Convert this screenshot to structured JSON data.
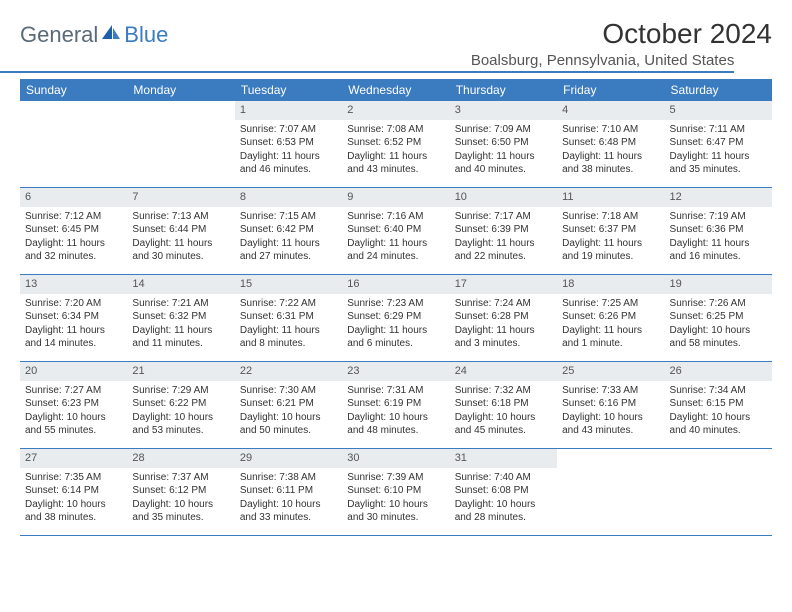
{
  "logo": {
    "general": "General",
    "blue": "Blue"
  },
  "header": {
    "month_year": "October 2024",
    "location": "Boalsburg, Pennsylvania, United States"
  },
  "colors": {
    "brand_blue": "#3b7bbf",
    "day_num_bg": "#e8ecef",
    "text": "#333333",
    "logo_gray": "#5a6a78"
  },
  "day_headers": [
    "Sunday",
    "Monday",
    "Tuesday",
    "Wednesday",
    "Thursday",
    "Friday",
    "Saturday"
  ],
  "weeks": [
    [
      {
        "empty": true
      },
      {
        "empty": true
      },
      {
        "day": "1",
        "sunrise": "Sunrise: 7:07 AM",
        "sunset": "Sunset: 6:53 PM",
        "daylight": "Daylight: 11 hours and 46 minutes."
      },
      {
        "day": "2",
        "sunrise": "Sunrise: 7:08 AM",
        "sunset": "Sunset: 6:52 PM",
        "daylight": "Daylight: 11 hours and 43 minutes."
      },
      {
        "day": "3",
        "sunrise": "Sunrise: 7:09 AM",
        "sunset": "Sunset: 6:50 PM",
        "daylight": "Daylight: 11 hours and 40 minutes."
      },
      {
        "day": "4",
        "sunrise": "Sunrise: 7:10 AM",
        "sunset": "Sunset: 6:48 PM",
        "daylight": "Daylight: 11 hours and 38 minutes."
      },
      {
        "day": "5",
        "sunrise": "Sunrise: 7:11 AM",
        "sunset": "Sunset: 6:47 PM",
        "daylight": "Daylight: 11 hours and 35 minutes."
      }
    ],
    [
      {
        "day": "6",
        "sunrise": "Sunrise: 7:12 AM",
        "sunset": "Sunset: 6:45 PM",
        "daylight": "Daylight: 11 hours and 32 minutes."
      },
      {
        "day": "7",
        "sunrise": "Sunrise: 7:13 AM",
        "sunset": "Sunset: 6:44 PM",
        "daylight": "Daylight: 11 hours and 30 minutes."
      },
      {
        "day": "8",
        "sunrise": "Sunrise: 7:15 AM",
        "sunset": "Sunset: 6:42 PM",
        "daylight": "Daylight: 11 hours and 27 minutes."
      },
      {
        "day": "9",
        "sunrise": "Sunrise: 7:16 AM",
        "sunset": "Sunset: 6:40 PM",
        "daylight": "Daylight: 11 hours and 24 minutes."
      },
      {
        "day": "10",
        "sunrise": "Sunrise: 7:17 AM",
        "sunset": "Sunset: 6:39 PM",
        "daylight": "Daylight: 11 hours and 22 minutes."
      },
      {
        "day": "11",
        "sunrise": "Sunrise: 7:18 AM",
        "sunset": "Sunset: 6:37 PM",
        "daylight": "Daylight: 11 hours and 19 minutes."
      },
      {
        "day": "12",
        "sunrise": "Sunrise: 7:19 AM",
        "sunset": "Sunset: 6:36 PM",
        "daylight": "Daylight: 11 hours and 16 minutes."
      }
    ],
    [
      {
        "day": "13",
        "sunrise": "Sunrise: 7:20 AM",
        "sunset": "Sunset: 6:34 PM",
        "daylight": "Daylight: 11 hours and 14 minutes."
      },
      {
        "day": "14",
        "sunrise": "Sunrise: 7:21 AM",
        "sunset": "Sunset: 6:32 PM",
        "daylight": "Daylight: 11 hours and 11 minutes."
      },
      {
        "day": "15",
        "sunrise": "Sunrise: 7:22 AM",
        "sunset": "Sunset: 6:31 PM",
        "daylight": "Daylight: 11 hours and 8 minutes."
      },
      {
        "day": "16",
        "sunrise": "Sunrise: 7:23 AM",
        "sunset": "Sunset: 6:29 PM",
        "daylight": "Daylight: 11 hours and 6 minutes."
      },
      {
        "day": "17",
        "sunrise": "Sunrise: 7:24 AM",
        "sunset": "Sunset: 6:28 PM",
        "daylight": "Daylight: 11 hours and 3 minutes."
      },
      {
        "day": "18",
        "sunrise": "Sunrise: 7:25 AM",
        "sunset": "Sunset: 6:26 PM",
        "daylight": "Daylight: 11 hours and 1 minute."
      },
      {
        "day": "19",
        "sunrise": "Sunrise: 7:26 AM",
        "sunset": "Sunset: 6:25 PM",
        "daylight": "Daylight: 10 hours and 58 minutes."
      }
    ],
    [
      {
        "day": "20",
        "sunrise": "Sunrise: 7:27 AM",
        "sunset": "Sunset: 6:23 PM",
        "daylight": "Daylight: 10 hours and 55 minutes."
      },
      {
        "day": "21",
        "sunrise": "Sunrise: 7:29 AM",
        "sunset": "Sunset: 6:22 PM",
        "daylight": "Daylight: 10 hours and 53 minutes."
      },
      {
        "day": "22",
        "sunrise": "Sunrise: 7:30 AM",
        "sunset": "Sunset: 6:21 PM",
        "daylight": "Daylight: 10 hours and 50 minutes."
      },
      {
        "day": "23",
        "sunrise": "Sunrise: 7:31 AM",
        "sunset": "Sunset: 6:19 PM",
        "daylight": "Daylight: 10 hours and 48 minutes."
      },
      {
        "day": "24",
        "sunrise": "Sunrise: 7:32 AM",
        "sunset": "Sunset: 6:18 PM",
        "daylight": "Daylight: 10 hours and 45 minutes."
      },
      {
        "day": "25",
        "sunrise": "Sunrise: 7:33 AM",
        "sunset": "Sunset: 6:16 PM",
        "daylight": "Daylight: 10 hours and 43 minutes."
      },
      {
        "day": "26",
        "sunrise": "Sunrise: 7:34 AM",
        "sunset": "Sunset: 6:15 PM",
        "daylight": "Daylight: 10 hours and 40 minutes."
      }
    ],
    [
      {
        "day": "27",
        "sunrise": "Sunrise: 7:35 AM",
        "sunset": "Sunset: 6:14 PM",
        "daylight": "Daylight: 10 hours and 38 minutes."
      },
      {
        "day": "28",
        "sunrise": "Sunrise: 7:37 AM",
        "sunset": "Sunset: 6:12 PM",
        "daylight": "Daylight: 10 hours and 35 minutes."
      },
      {
        "day": "29",
        "sunrise": "Sunrise: 7:38 AM",
        "sunset": "Sunset: 6:11 PM",
        "daylight": "Daylight: 10 hours and 33 minutes."
      },
      {
        "day": "30",
        "sunrise": "Sunrise: 7:39 AM",
        "sunset": "Sunset: 6:10 PM",
        "daylight": "Daylight: 10 hours and 30 minutes."
      },
      {
        "day": "31",
        "sunrise": "Sunrise: 7:40 AM",
        "sunset": "Sunset: 6:08 PM",
        "daylight": "Daylight: 10 hours and 28 minutes."
      },
      {
        "empty": true
      },
      {
        "empty": true
      }
    ]
  ]
}
